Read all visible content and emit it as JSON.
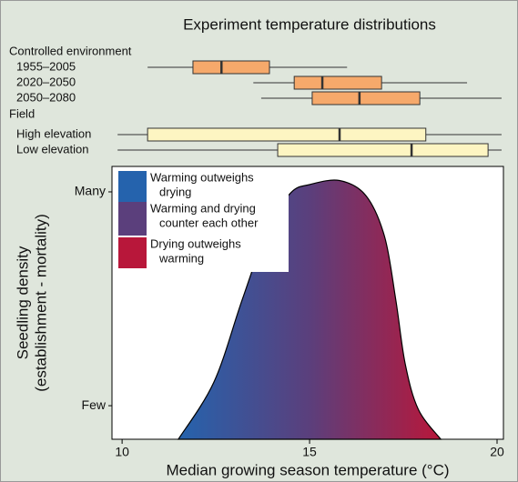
{
  "chart_data": [
    {
      "type": "boxplot",
      "title": "Experiment temperature distributions",
      "categories": [
        "Controlled environment",
        "1955–2005",
        "2020–2050",
        "2050–2080",
        "Field",
        "High elevation",
        "Low elevation"
      ],
      "whisker_low": [
        null,
        10.68,
        13.5,
        13.71,
        null,
        9.88,
        9.88
      ],
      "q1": [
        null,
        11.89,
        14.59,
        15.07,
        null,
        10.68,
        14.15
      ],
      "median": [
        null,
        12.65,
        15.34,
        16.33,
        null,
        15.8,
        17.72
      ],
      "q3": [
        null,
        13.93,
        16.92,
        17.94,
        null,
        18.1,
        19.76
      ],
      "whisker_high": [
        null,
        16.0,
        19.2,
        20.12,
        null,
        20.12,
        20.12
      ],
      "box_colors": [
        null,
        "#f6a96b",
        "#f6a96b",
        "#f6a96b",
        null,
        "#fdf5c2",
        "#fdf5c2"
      ],
      "xlim": [
        9.73,
        20.17
      ]
    },
    {
      "type": "area",
      "x": [
        11.5,
        12.45,
        13.2,
        13.9,
        14.5,
        15.0,
        15.8,
        16.5,
        17.0,
        17.3,
        17.55,
        17.9,
        18.5
      ],
      "values": [
        -0.157,
        0.111,
        0.494,
        0.834,
        0.996,
        1.034,
        1.053,
        0.983,
        0.791,
        0.494,
        0.196,
        -0.017,
        -0.157
      ],
      "gradient": [
        "#2563ad",
        "#5b3f7c",
        "#b8173a"
      ],
      "xlim": [
        9.73,
        20.17
      ],
      "ylim": [
        -0.157,
        1.119
      ],
      "xticks": [
        10,
        15,
        20
      ],
      "yticks": [
        {
          "value": 1,
          "label": "Many"
        },
        {
          "value": 0,
          "label": "Few"
        }
      ],
      "xlabel": "Median growing season temperature (°C)",
      "ylabel": [
        "Seedling density",
        "(establishment - mortality)"
      ],
      "legend": [
        {
          "label": [
            "Warming outweighs",
            "drying"
          ],
          "color": "#2563ad"
        },
        {
          "label": [
            "Warming and  drying",
            "counter each other"
          ],
          "color": "#5b3f7c"
        },
        {
          "label": [
            "Drying outweighs",
            "warming"
          ],
          "color": "#b8173a"
        }
      ]
    }
  ]
}
